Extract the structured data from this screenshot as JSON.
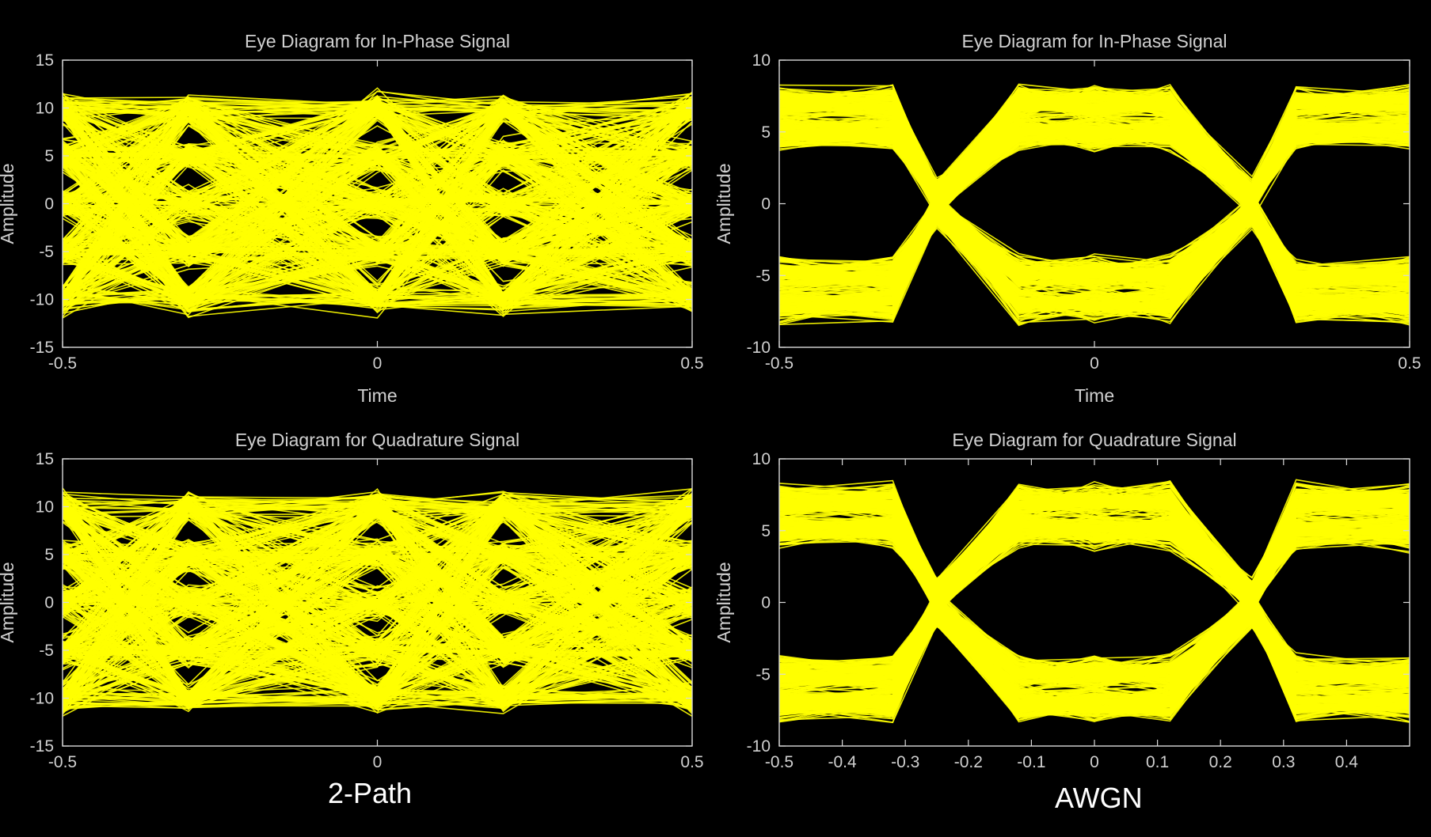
{
  "colors": {
    "background": "#000000",
    "trace": "#ffff00",
    "axes": "#d9d9d9",
    "text": "#d0d0d0"
  },
  "captions": {
    "left": "2-Path",
    "right": "AWGN"
  },
  "chart_data": [
    {
      "type": "line",
      "title": "Eye Diagram for In-Phase Signal",
      "xlabel": "Time",
      "ylabel": "Amplitude",
      "xlim": [
        -0.5,
        0.5
      ],
      "ylim": [
        -15,
        15
      ],
      "xticks": [
        -0.5,
        0,
        0.5
      ],
      "yticks": [
        -15,
        -10,
        -5,
        0,
        5,
        10,
        15
      ],
      "grid": false,
      "eye": {
        "levels": [
          -10,
          -5,
          0,
          5,
          10
        ],
        "noise": 1.1,
        "traces": 520,
        "crossings": [],
        "seed": 11
      }
    },
    {
      "type": "line",
      "title": "Eye Diagram for In-Phase Signal",
      "xlabel": "Time",
      "ylabel": "Amplitude",
      "xlim": [
        -0.5,
        0.5
      ],
      "ylim": [
        -10,
        10
      ],
      "xticks": [
        -0.5,
        0,
        0.5
      ],
      "yticks": [
        -10,
        -5,
        0,
        5,
        10
      ],
      "grid": false,
      "eye": {
        "levels": [
          -7,
          -5,
          5,
          7
        ],
        "noise": 0.9,
        "traces": 520,
        "crossings": [
          -0.25,
          0.25
        ],
        "seed": 23
      }
    },
    {
      "type": "line",
      "title": "Eye Diagram for Quadrature Signal",
      "xlabel": "",
      "ylabel": "Amplitude",
      "xlim": [
        -0.5,
        0.5
      ],
      "ylim": [
        -15,
        15
      ],
      "xticks": [
        -0.5,
        0,
        0.5
      ],
      "yticks": [
        -15,
        -10,
        -5,
        0,
        5,
        10,
        15
      ],
      "grid": false,
      "eye": {
        "levels": [
          -10,
          -5,
          0,
          5,
          10
        ],
        "noise": 1.1,
        "traces": 520,
        "crossings": [],
        "seed": 37
      }
    },
    {
      "type": "line",
      "title": "Eye Diagram for Quadrature Signal",
      "xlabel": "",
      "ylabel": "Amplitude",
      "xlim": [
        -0.5,
        0.5
      ],
      "ylim": [
        -10,
        10
      ],
      "xticks": [
        -0.5,
        -0.4,
        -0.3,
        -0.2,
        -0.1,
        0,
        0.1,
        0.2,
        0.3,
        0.4
      ],
      "yticks": [
        -10,
        -5,
        0,
        5,
        10
      ],
      "grid": false,
      "eye": {
        "levels": [
          -7,
          -5,
          5,
          7
        ],
        "noise": 0.9,
        "traces": 520,
        "crossings": [
          -0.25,
          0.25
        ],
        "seed": 53
      }
    }
  ]
}
